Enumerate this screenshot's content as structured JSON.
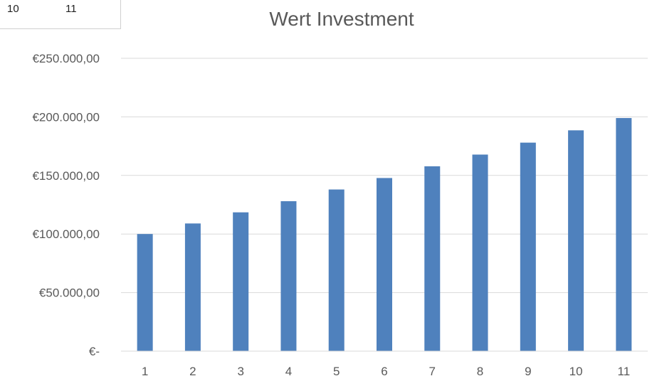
{
  "sheet_fragment": {
    "cells": [
      "10",
      "11"
    ]
  },
  "chart_data": {
    "type": "bar",
    "title": "Wert Investment",
    "xlabel": "",
    "ylabel": "",
    "categories": [
      "1",
      "2",
      "3",
      "4",
      "5",
      "6",
      "7",
      "8",
      "9",
      "10",
      "11"
    ],
    "series": [
      {
        "values": [
          100000,
          109000,
          118500,
          128000,
          138000,
          147800,
          157800,
          167800,
          178000,
          188500,
          199000
        ]
      }
    ],
    "ylim": [
      0,
      250000
    ],
    "yticks": [
      {
        "value": 0,
        "label": "€-"
      },
      {
        "value": 50000,
        "label": "€50.000,00"
      },
      {
        "value": 100000,
        "label": "€100.000,00"
      },
      {
        "value": 150000,
        "label": "€150.000,00"
      },
      {
        "value": 200000,
        "label": "€200.000,00"
      },
      {
        "value": 250000,
        "label": "€250.000,00"
      }
    ],
    "grid": true,
    "legend": "none",
    "colors": {
      "bar": "#4f81bd",
      "grid": "#d9d9d9",
      "text": "#595959"
    }
  }
}
